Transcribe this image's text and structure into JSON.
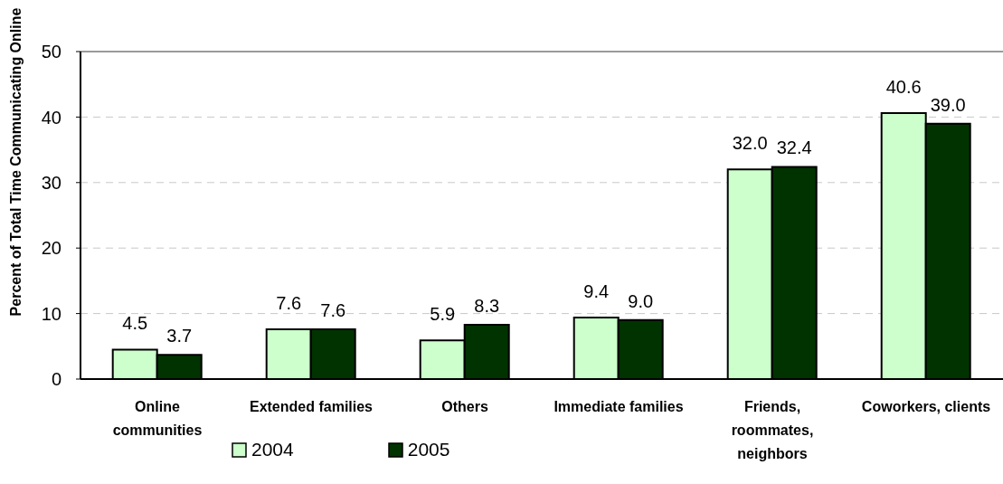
{
  "chart_data": {
    "type": "bar",
    "ylabel": "Percent of Total Time Communicating Online",
    "categories": [
      "Online communities",
      "Extended families",
      "Others",
      "Immediate families",
      "Friends, roommates, neighbors",
      "Coworkers, clients"
    ],
    "series": [
      {
        "name": "2004",
        "color": "#ccffcc",
        "values": [
          4.5,
          7.6,
          5.9,
          9.4,
          32.0,
          40.6
        ],
        "value_labels": [
          "4.5",
          "7.6",
          "5.9",
          "9.4",
          "32.0",
          "40.6"
        ]
      },
      {
        "name": "2005",
        "color": "#003300",
        "values": [
          3.7,
          7.6,
          8.3,
          9.0,
          32.4,
          39.0
        ],
        "value_labels": [
          "3.7",
          "7.6",
          "8.3",
          "9.0",
          "32.4",
          "39.0"
        ]
      }
    ],
    "ylim": [
      0,
      50
    ],
    "yticks": [
      0,
      10,
      20,
      30,
      40,
      50
    ],
    "grid": "y",
    "legend": "bottom"
  }
}
